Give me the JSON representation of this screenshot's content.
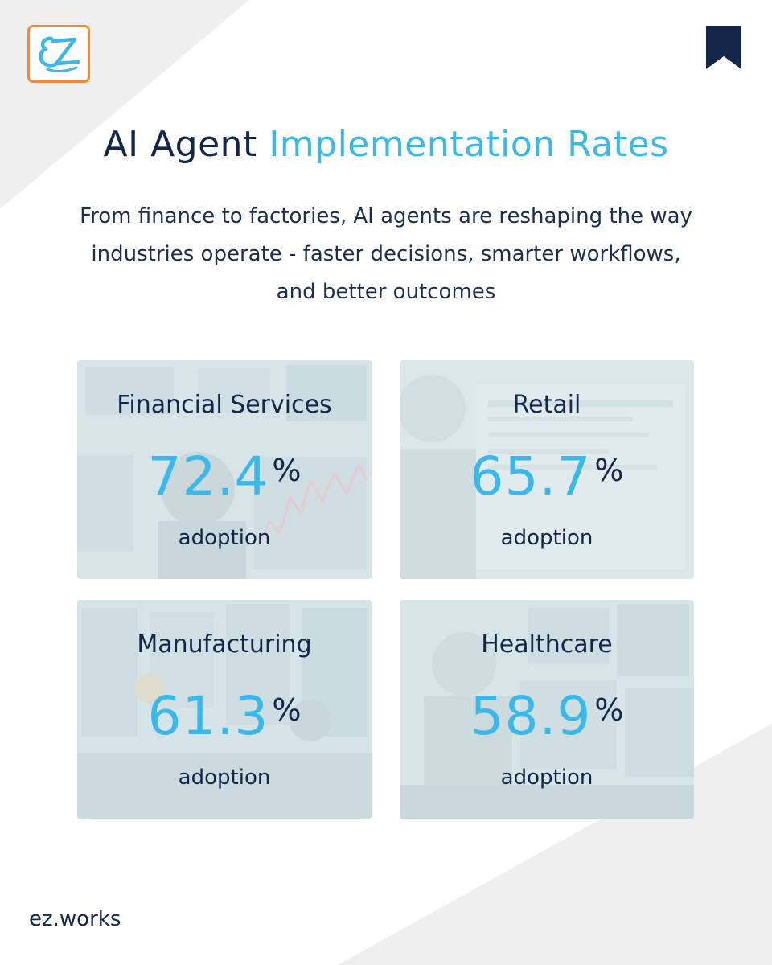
{
  "brand": {
    "logo_text": "EZ",
    "footer": "ez.works"
  },
  "colors": {
    "navy": "#13274a",
    "accent": "#3bb8ea",
    "logo_border": "#f08a3c"
  },
  "header": {
    "title_part1": "AI Agent",
    "title_part2": "Implementation Rates",
    "subtitle": "From finance to factories, AI agents are reshaping the way industries operate - faster decisions, smarter workflows, and better outcomes"
  },
  "icons": {
    "logo": "ez-logo-icon",
    "bookmark": "bookmark-icon"
  },
  "cards": [
    {
      "label": "Financial Services",
      "value": "72.4",
      "unit": "%",
      "caption": "adoption"
    },
    {
      "label": "Retail",
      "value": "65.7",
      "unit": "%",
      "caption": "adoption"
    },
    {
      "label": "Manufacturing",
      "value": "61.3",
      "unit": "%",
      "caption": "adoption"
    },
    {
      "label": "Healthcare",
      "value": "58.9",
      "unit": "%",
      "caption": "adoption"
    }
  ]
}
